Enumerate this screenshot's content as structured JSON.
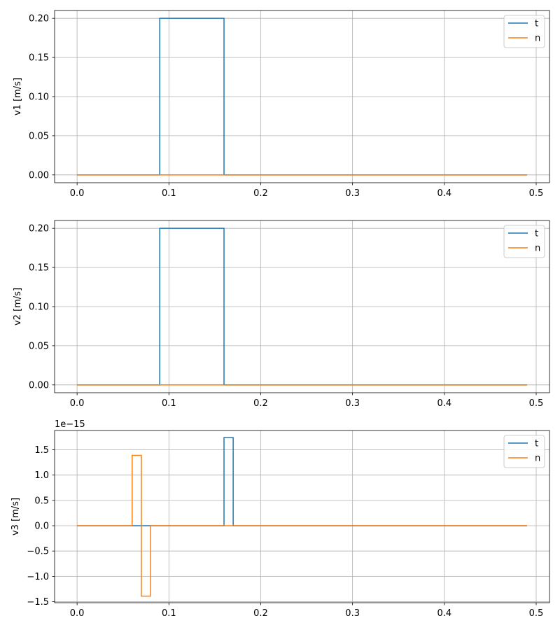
{
  "colors": {
    "t": "#1f77b4",
    "n": "#ff7f0e",
    "grid": "#b0b0b0",
    "axes": "#000000"
  },
  "chart_data": [
    {
      "type": "line",
      "ylabel": "v1 [m/s]",
      "xlim": [
        -0.0245,
        0.5145
      ],
      "ylim": [
        -0.01,
        0.21
      ],
      "xticks": [
        0.0,
        0.1,
        0.2,
        0.3,
        0.4,
        0.5
      ],
      "xtick_labels": [
        "0.0",
        "0.1",
        "0.2",
        "0.3",
        "0.4",
        "0.5"
      ],
      "yticks": [
        0.0,
        0.05,
        0.1,
        0.15,
        0.2
      ],
      "ytick_labels": [
        "0.00",
        "0.05",
        "0.10",
        "0.15",
        "0.20"
      ],
      "offset_text": "",
      "grid": true,
      "legend_position": "top-right",
      "series": [
        {
          "name": "t",
          "x": [
            0.0,
            0.09,
            0.09,
            0.16,
            0.16,
            0.49
          ],
          "y": [
            0,
            0,
            0.2,
            0.2,
            0,
            0
          ]
        },
        {
          "name": "n",
          "x": [
            0.0,
            0.49
          ],
          "y": [
            0,
            0
          ]
        }
      ]
    },
    {
      "type": "line",
      "ylabel": "v2 [m/s]",
      "xlim": [
        -0.0245,
        0.5145
      ],
      "ylim": [
        -0.01,
        0.21
      ],
      "xticks": [
        0.0,
        0.1,
        0.2,
        0.3,
        0.4,
        0.5
      ],
      "xtick_labels": [
        "0.0",
        "0.1",
        "0.2",
        "0.3",
        "0.4",
        "0.5"
      ],
      "yticks": [
        0.0,
        0.05,
        0.1,
        0.15,
        0.2
      ],
      "ytick_labels": [
        "0.00",
        "0.05",
        "0.10",
        "0.15",
        "0.20"
      ],
      "offset_text": "",
      "grid": true,
      "legend_position": "top-right",
      "series": [
        {
          "name": "t",
          "x": [
            0.0,
            0.09,
            0.09,
            0.16,
            0.16,
            0.49
          ],
          "y": [
            0,
            0,
            0.2,
            0.2,
            0,
            0
          ]
        },
        {
          "name": "n",
          "x": [
            0.0,
            0.49
          ],
          "y": [
            0,
            0
          ]
        }
      ]
    },
    {
      "type": "line",
      "ylabel": "v3 [m/s]",
      "xlim": [
        -0.0245,
        0.5145
      ],
      "ylim": [
        -1.52,
        1.88
      ],
      "xticks": [
        0.0,
        0.1,
        0.2,
        0.3,
        0.4,
        0.5
      ],
      "xtick_labels": [
        "0.0",
        "0.1",
        "0.2",
        "0.3",
        "0.4",
        "0.5"
      ],
      "yticks": [
        -1.5,
        -1.0,
        -0.5,
        0.0,
        0.5,
        1.0,
        1.5
      ],
      "ytick_labels": [
        "−1.5",
        "−1.0",
        "−0.5",
        "0.0",
        "0.5",
        "1.0",
        "1.5"
      ],
      "offset_text": "1e−15",
      "grid": true,
      "legend_position": "top-right",
      "series": [
        {
          "name": "t",
          "x": [
            0.0,
            0.16,
            0.16,
            0.17,
            0.17,
            0.49
          ],
          "y": [
            0,
            0,
            1.74,
            1.74,
            0,
            0
          ]
        },
        {
          "name": "n",
          "x": [
            0.0,
            0.06,
            0.06,
            0.07,
            0.07,
            0.08,
            0.08,
            0.49
          ],
          "y": [
            0,
            0,
            1.39,
            1.39,
            -1.39,
            -1.39,
            0,
            0
          ]
        }
      ]
    }
  ]
}
